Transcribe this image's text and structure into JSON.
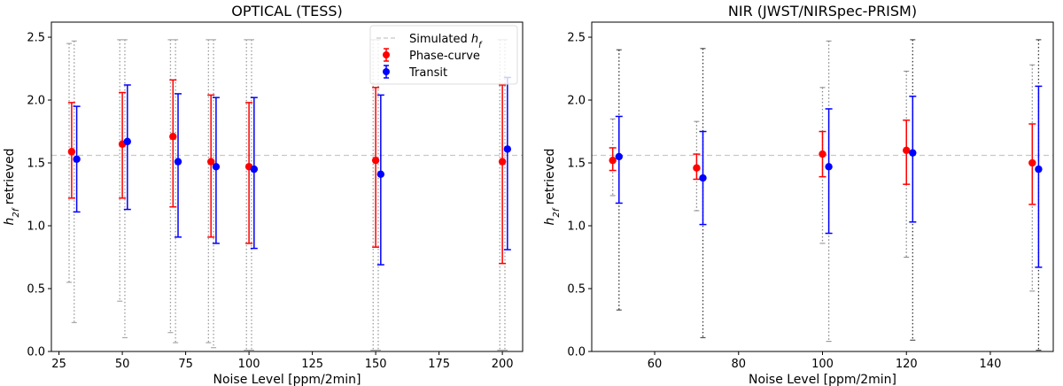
{
  "chart_data": [
    {
      "type": "scatter",
      "title": "OPTICAL (TESS)",
      "xlabel": "Noise Level [ppm/2min]",
      "ylabel": "h_{2f} retrieved",
      "xlim": [
        22,
        208
      ],
      "ylim": [
        0.0,
        2.62
      ],
      "xticks": [
        25,
        50,
        75,
        100,
        125,
        150,
        175,
        200
      ],
      "yticks": [
        0.0,
        0.5,
        1.0,
        1.5,
        2.0,
        2.5
      ],
      "grid": false,
      "legend": "top-right",
      "reference_line": {
        "name": "Simulated h_f",
        "y": 1.56,
        "color": "#c8c8c8"
      },
      "series": [
        {
          "name": "Phase-curve",
          "color": "#ff0000",
          "x": [
            30,
            50,
            70,
            85,
            100,
            150,
            200
          ],
          "y": [
            1.59,
            1.65,
            1.71,
            1.51,
            1.47,
            1.52,
            1.51
          ],
          "yerr_low": [
            1.22,
            1.22,
            1.15,
            0.91,
            0.86,
            0.83,
            0.7
          ],
          "yerr_high": [
            1.98,
            2.06,
            2.16,
            2.04,
            1.98,
            2.1,
            2.12
          ]
        },
        {
          "name": "Transit",
          "color": "#0000ff",
          "x": [
            32,
            52,
            72,
            87,
            102,
            152,
            202
          ],
          "y": [
            1.53,
            1.67,
            1.51,
            1.47,
            1.45,
            1.41,
            1.61
          ],
          "yerr_low": [
            1.11,
            1.13,
            0.91,
            0.86,
            0.82,
            0.69,
            0.81
          ],
          "yerr_high": [
            1.95,
            2.12,
            2.05,
            2.02,
            2.02,
            2.04,
            2.18
          ]
        }
      ],
      "dotted_ranges": [
        {
          "x": 29,
          "low": 0.55,
          "high": 2.45,
          "color": "#999999"
        },
        {
          "x": 31,
          "low": 0.23,
          "high": 2.47,
          "color": "#999999"
        },
        {
          "x": 49,
          "low": 0.4,
          "high": 2.48,
          "color": "#999999"
        },
        {
          "x": 51,
          "low": 0.11,
          "high": 2.48,
          "color": "#999999"
        },
        {
          "x": 69,
          "low": 0.15,
          "high": 2.48,
          "color": "#999999"
        },
        {
          "x": 71,
          "low": 0.07,
          "high": 2.48,
          "color": "#999999"
        },
        {
          "x": 84,
          "low": 0.07,
          "high": 2.48,
          "color": "#999999"
        },
        {
          "x": 86,
          "low": 0.03,
          "high": 2.48,
          "color": "#999999"
        },
        {
          "x": 99,
          "low": 0.01,
          "high": 2.48,
          "color": "#999999"
        },
        {
          "x": 101,
          "low": 0.01,
          "high": 2.48,
          "color": "#999999"
        },
        {
          "x": 149,
          "low": 0.01,
          "high": 2.48,
          "color": "#999999"
        },
        {
          "x": 151,
          "low": 0.01,
          "high": 2.48,
          "color": "#999999"
        },
        {
          "x": 199,
          "low": 0.01,
          "high": 2.48,
          "color": "#999999"
        },
        {
          "x": 201,
          "low": 0.01,
          "high": 2.48,
          "color": "#999999"
        }
      ]
    },
    {
      "type": "scatter",
      "title": "NIR (JWST/NIRSpec-PRISM)",
      "xlabel": "Noise Level [ppm/2min]",
      "ylabel": "h_{2f} retrieved",
      "xlim": [
        45,
        155
      ],
      "ylim": [
        0.0,
        2.62
      ],
      "xticks": [
        60,
        80,
        100,
        120,
        140
      ],
      "yticks": [
        0.0,
        0.5,
        1.0,
        1.5,
        2.0,
        2.5
      ],
      "grid": false,
      "reference_line": {
        "y": 1.56,
        "color": "#c8c8c8"
      },
      "series": [
        {
          "name": "Phase-curve",
          "color": "#ff0000",
          "x": [
            50,
            70,
            100,
            120,
            150
          ],
          "y": [
            1.52,
            1.46,
            1.57,
            1.6,
            1.5
          ],
          "yerr_low": [
            1.44,
            1.37,
            1.39,
            1.33,
            1.17
          ],
          "yerr_high": [
            1.62,
            1.57,
            1.75,
            1.84,
            1.81
          ]
        },
        {
          "name": "Transit",
          "color": "#0000ff",
          "x": [
            51.5,
            71.5,
            101.5,
            121.5,
            151.5
          ],
          "y": [
            1.55,
            1.38,
            1.47,
            1.58,
            1.45
          ],
          "yerr_low": [
            1.18,
            1.01,
            0.94,
            1.03,
            0.67
          ],
          "yerr_high": [
            1.87,
            1.75,
            1.93,
            2.03,
            2.11
          ]
        }
      ],
      "dotted_ranges": [
        {
          "x": 50,
          "low": 1.24,
          "high": 1.85,
          "color": "#888888"
        },
        {
          "x": 51.5,
          "low": 0.33,
          "high": 2.4,
          "color": "#333333"
        },
        {
          "x": 70,
          "low": 1.12,
          "high": 1.83,
          "color": "#888888"
        },
        {
          "x": 71.5,
          "low": 0.11,
          "high": 2.41,
          "color": "#333333"
        },
        {
          "x": 100,
          "low": 0.86,
          "high": 2.1,
          "color": "#888888"
        },
        {
          "x": 101.5,
          "low": 0.08,
          "high": 2.47,
          "color": "#888888"
        },
        {
          "x": 120,
          "low": 0.75,
          "high": 2.23,
          "color": "#888888"
        },
        {
          "x": 121.5,
          "low": 0.09,
          "high": 2.48,
          "color": "#333333"
        },
        {
          "x": 150,
          "low": 0.48,
          "high": 2.28,
          "color": "#888888"
        },
        {
          "x": 151.5,
          "low": 0.01,
          "high": 2.48,
          "color": "#333333"
        }
      ]
    }
  ]
}
